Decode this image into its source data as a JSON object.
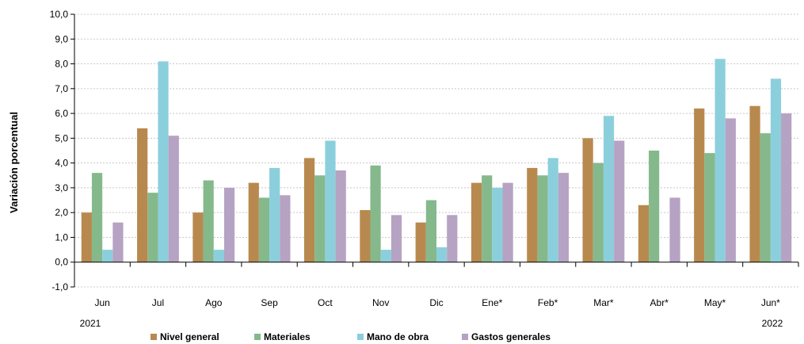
{
  "chart_data": {
    "type": "bar",
    "ylabel": "Variación porcentual",
    "xlabel": "",
    "ylim": [
      -1,
      10
    ],
    "yticks": [
      "-1,0",
      "0,0",
      "1,0",
      "2,0",
      "3,0",
      "4,0",
      "5,0",
      "6,0",
      "7,0",
      "8,0",
      "9,0",
      "10,0"
    ],
    "categories": [
      "Jun",
      "Jul",
      "Ago",
      "Sep",
      "Oct",
      "Nov",
      "Dic",
      "Ene*",
      "Feb*",
      "Mar*",
      "Abr*",
      "May*",
      "Jun*"
    ],
    "year_labels": {
      "start": "2021",
      "end": "2022"
    },
    "grid": true,
    "legend_position": "bottom",
    "series": [
      {
        "name": "Nivel general",
        "color": "#b8894e",
        "values": [
          2.0,
          5.4,
          2.0,
          3.2,
          4.2,
          2.1,
          1.6,
          3.2,
          3.8,
          5.0,
          2.3,
          6.2,
          6.3
        ]
      },
      {
        "name": "Materiales",
        "color": "#85b98c",
        "values": [
          3.6,
          2.8,
          3.3,
          2.6,
          3.5,
          3.9,
          2.5,
          3.5,
          3.5,
          4.0,
          4.5,
          4.4,
          5.2
        ]
      },
      {
        "name": "Mano de obra",
        "color": "#8ccfdc",
        "values": [
          0.5,
          8.1,
          0.5,
          3.8,
          4.9,
          0.5,
          0.6,
          3.0,
          4.2,
          5.9,
          null,
          8.2,
          7.4
        ]
      },
      {
        "name": "Gastos generales",
        "color": "#b6a2c2",
        "values": [
          1.6,
          5.1,
          3.0,
          2.7,
          3.7,
          1.9,
          1.9,
          3.2,
          3.6,
          4.9,
          2.6,
          5.8,
          6.0
        ]
      }
    ]
  }
}
